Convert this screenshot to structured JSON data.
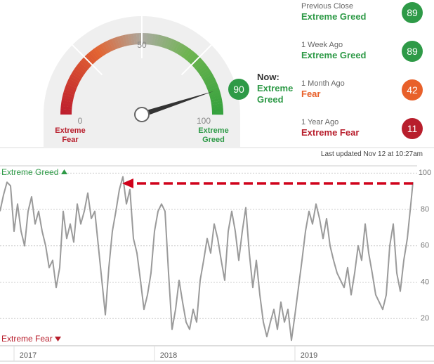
{
  "gauge": {
    "ticks": [
      0,
      50,
      100
    ],
    "value": 90,
    "color": "#2e9a47",
    "now_label": "Now:",
    "rating": "Extreme Greed",
    "low_label": "Extreme Fear",
    "high_label": "Extreme Greed"
  },
  "history": [
    {
      "label": "Previous Close",
      "rating": "Extreme Greed",
      "value": 89,
      "color": "#2e9a47"
    },
    {
      "label": "1 Week Ago",
      "rating": "Extreme Greed",
      "value": 89,
      "color": "#2e9a47"
    },
    {
      "label": "1 Month Ago",
      "rating": "Fear",
      "value": 42,
      "color": "#e8602a"
    },
    {
      "label": "1 Year Ago",
      "rating": "Extreme Fear",
      "value": 11,
      "color": "#b81e2c"
    }
  ],
  "last_updated": "Last updated Nov 12 at 10:27am",
  "chart_data": {
    "type": "line",
    "top_label": "Extreme Greed",
    "bottom_label": "Extreme Fear",
    "x": [
      2016.9,
      2016.925,
      2016.95,
      2016.975,
      2017,
      2017.025,
      2017.05,
      2017.075,
      2017.1,
      2017.125,
      2017.15,
      2017.175,
      2017.2,
      2017.225,
      2017.25,
      2017.275,
      2017.3,
      2017.325,
      2017.35,
      2017.375,
      2017.4,
      2017.425,
      2017.45,
      2017.475,
      2017.5,
      2017.525,
      2017.55,
      2017.575,
      2017.6,
      2017.625,
      2017.65,
      2017.675,
      2017.7,
      2017.725,
      2017.75,
      2017.775,
      2017.8,
      2017.825,
      2017.85,
      2017.875,
      2017.9,
      2017.925,
      2017.95,
      2017.975,
      2018,
      2018.025,
      2018.05,
      2018.075,
      2018.1,
      2018.125,
      2018.15,
      2018.175,
      2018.2,
      2018.225,
      2018.25,
      2018.275,
      2018.3,
      2018.325,
      2018.35,
      2018.375,
      2018.4,
      2018.425,
      2018.45,
      2018.475,
      2018.5,
      2018.525,
      2018.55,
      2018.575,
      2018.6,
      2018.625,
      2018.65,
      2018.675,
      2018.7,
      2018.725,
      2018.75,
      2018.775,
      2018.8,
      2018.825,
      2018.85,
      2018.875,
      2018.9,
      2018.925,
      2018.95,
      2018.975,
      2019,
      2019.025,
      2019.05,
      2019.075,
      2019.1,
      2019.125,
      2019.15,
      2019.175,
      2019.2,
      2019.225,
      2019.25,
      2019.275,
      2019.3,
      2019.325,
      2019.35,
      2019.375,
      2019.4,
      2019.425,
      2019.45,
      2019.475,
      2019.5,
      2019.525,
      2019.55,
      2019.575,
      2019.6,
      2019.625,
      2019.65,
      2019.675,
      2019.7,
      2019.725,
      2019.75,
      2019.775,
      2019.8,
      2019.825,
      2019.84
    ],
    "series": [
      {
        "color": "#9a9a9a",
        "values": [
          79,
          88,
          95,
          93,
          68,
          83,
          68,
          60,
          79,
          87,
          72,
          79,
          68,
          60,
          48,
          52,
          37,
          48,
          79,
          64,
          72,
          62,
          83,
          72,
          79,
          89,
          75,
          79,
          60,
          41,
          22,
          48,
          68,
          79,
          91,
          98,
          83,
          91,
          64,
          56,
          41,
          25,
          33,
          45,
          68,
          79,
          83,
          79,
          45,
          14,
          25,
          41,
          29,
          18,
          14,
          25,
          18,
          41,
          52,
          64,
          56,
          72,
          64,
          52,
          41,
          68,
          79,
          68,
          52,
          68,
          81,
          56,
          37,
          52,
          33,
          18,
          10,
          18,
          25,
          14,
          29,
          18,
          25,
          8,
          22,
          37,
          52,
          68,
          79,
          72,
          83,
          75,
          64,
          75,
          60,
          52,
          45,
          41,
          37,
          48,
          33,
          45,
          60,
          52,
          72,
          56,
          45,
          33,
          29,
          25,
          33,
          60,
          72,
          45,
          35,
          52,
          64,
          83,
          95
        ]
      }
    ],
    "xlim": [
      2016.9,
      2019.87
    ],
    "xticks": [
      2017,
      2018,
      2019
    ],
    "ylim": [
      5,
      104
    ],
    "yticks": [
      20,
      40,
      60,
      80,
      100
    ],
    "grid": true
  }
}
